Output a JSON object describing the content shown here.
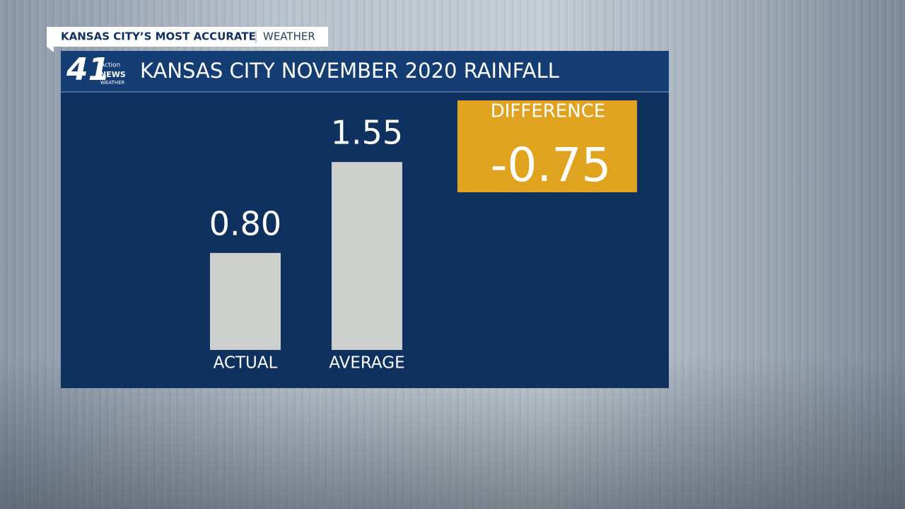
{
  "header": {
    "banner": "KANSAS CITY’S MOST ACCURATE",
    "section": "WEATHER",
    "logo": {
      "number": "41",
      "line1": "Action",
      "line2": "NEWS",
      "line3": "WEATHER"
    }
  },
  "chart_data": {
    "type": "bar",
    "title": "KANSAS CITY NOVEMBER 2020 RAINFALL",
    "categories": [
      "ACTUAL",
      "AVERAGE"
    ],
    "values": [
      0.8,
      1.55
    ],
    "value_labels": [
      "0.80",
      "1.55"
    ],
    "color": "#cdcfcd",
    "difference": {
      "label": "DIFFERENCE",
      "value": -0.75
    }
  }
}
